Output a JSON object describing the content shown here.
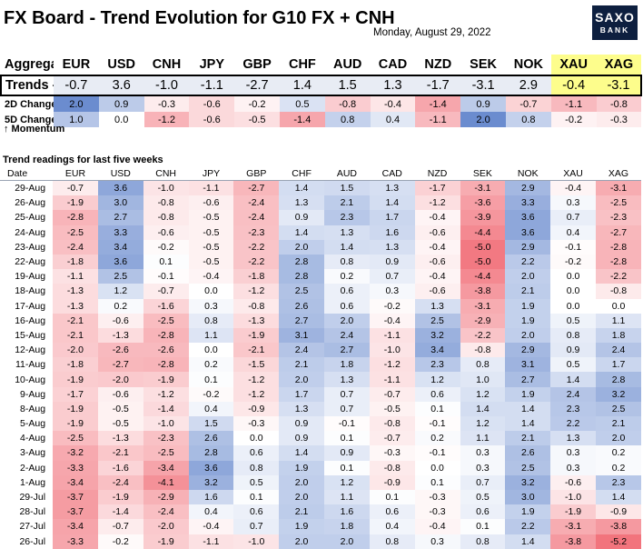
{
  "title": "FX Board - Trend Evolution for G10 FX + CNH",
  "date": "Monday, August 29, 2022",
  "logo": {
    "line1": "SAXO",
    "line2": "BANK"
  },
  "currencies": [
    "EUR",
    "USD",
    "CNH",
    "JPY",
    "GBP",
    "CHF",
    "AUD",
    "CAD",
    "NZD",
    "SEK",
    "NOK",
    "XAU",
    "XAG"
  ],
  "summary": {
    "header_label": "Aggregate",
    "trends_label": "Trends ->",
    "trends": [
      "-0.7",
      "3.6",
      "-1.0",
      "-1.1",
      "-2.7",
      "1.4",
      "1.5",
      "1.3",
      "-1.7",
      "-3.1",
      "2.9",
      "-0.4",
      "-3.1"
    ],
    "change_2d_label": "2D Change",
    "change_2d": [
      "2.0",
      "0.9",
      "-0.3",
      "-0.6",
      "-0.2",
      "0.5",
      "-0.8",
      "-0.4",
      "-1.4",
      "0.9",
      "-0.7",
      "-1.1",
      "-0.8"
    ],
    "change_5d_label": "5D Change",
    "change_5d": [
      "1.0",
      "0.0",
      "-1.2",
      "-0.6",
      "-0.5",
      "-1.4",
      "0.8",
      "0.4",
      "-1.1",
      "2.0",
      "0.8",
      "-0.2",
      "-0.3"
    ]
  },
  "momentum_label": "↑ Momentum",
  "section_title": "Trend readings for last five weeks",
  "date_header": "Date",
  "colors": {
    "positive": "#4a72c4",
    "negative": "#f0646e",
    "highlight": "#fdfd8c",
    "logo_bg": "#0d1f3f"
  },
  "rows": [
    {
      "date": "29-Aug",
      "v": [
        "-0.7",
        "3.6",
        "-1.0",
        "-1.1",
        "-2.7",
        "1.4",
        "1.5",
        "1.3",
        "-1.7",
        "-3.1",
        "2.9",
        "-0.4",
        "-3.1"
      ]
    },
    {
      "date": "26-Aug",
      "v": [
        "-1.9",
        "3.0",
        "-0.8",
        "-0.6",
        "-2.4",
        "1.3",
        "2.1",
        "1.4",
        "-1.2",
        "-3.6",
        "3.3",
        "0.3",
        "-2.5"
      ]
    },
    {
      "date": "25-Aug",
      "v": [
        "-2.8",
        "2.7",
        "-0.8",
        "-0.5",
        "-2.4",
        "0.9",
        "2.3",
        "1.7",
        "-0.4",
        "-3.9",
        "3.6",
        "0.7",
        "-2.3"
      ]
    },
    {
      "date": "24-Aug",
      "v": [
        "-2.5",
        "3.3",
        "-0.6",
        "-0.5",
        "-2.3",
        "1.4",
        "1.3",
        "1.6",
        "-0.6",
        "-4.4",
        "3.6",
        "0.4",
        "-2.7"
      ]
    },
    {
      "date": "23-Aug",
      "v": [
        "-2.4",
        "3.4",
        "-0.2",
        "-0.5",
        "-2.2",
        "2.0",
        "1.4",
        "1.3",
        "-0.4",
        "-5.0",
        "2.9",
        "-0.1",
        "-2.8"
      ]
    },
    {
      "date": "22-Aug",
      "v": [
        "-1.8",
        "3.6",
        "0.1",
        "-0.5",
        "-2.2",
        "2.8",
        "0.8",
        "0.9",
        "-0.6",
        "-5.0",
        "2.2",
        "-0.2",
        "-2.8"
      ]
    },
    {
      "date": "19-Aug",
      "v": [
        "-1.1",
        "2.5",
        "-0.1",
        "-0.4",
        "-1.8",
        "2.8",
        "0.2",
        "0.7",
        "-0.4",
        "-4.4",
        "2.0",
        "0.0",
        "-2.2"
      ]
    },
    {
      "date": "18-Aug",
      "v": [
        "-1.3",
        "1.2",
        "-0.7",
        "0.0",
        "-1.2",
        "2.5",
        "0.6",
        "0.3",
        "-0.6",
        "-3.8",
        "2.1",
        "0.0",
        "-0.8"
      ]
    },
    {
      "date": "17-Aug",
      "v": [
        "-1.3",
        "0.2",
        "-1.6",
        "0.3",
        "-0.8",
        "2.6",
        "0.6",
        "-0.2",
        "1.3",
        "-3.1",
        "1.9",
        "0.0",
        "0.0"
      ]
    },
    {
      "date": "16-Aug",
      "v": [
        "-2.1",
        "-0.6",
        "-2.5",
        "0.8",
        "-1.3",
        "2.7",
        "2.0",
        "-0.4",
        "2.5",
        "-2.9",
        "1.9",
        "0.5",
        "1.1"
      ]
    },
    {
      "date": "15-Aug",
      "v": [
        "-2.1",
        "-1.3",
        "-2.8",
        "1.1",
        "-1.9",
        "3.1",
        "2.4",
        "-1.1",
        "3.2",
        "-2.2",
        "2.0",
        "0.8",
        "1.8"
      ]
    },
    {
      "date": "12-Aug",
      "v": [
        "-2.0",
        "-2.6",
        "-2.6",
        "0.0",
        "-2.1",
        "2.4",
        "2.7",
        "-1.0",
        "3.4",
        "-0.8",
        "2.9",
        "0.9",
        "2.4"
      ]
    },
    {
      "date": "11-Aug",
      "v": [
        "-1.8",
        "-2.7",
        "-2.8",
        "0.2",
        "-1.5",
        "2.1",
        "1.8",
        "-1.2",
        "2.3",
        "0.8",
        "3.1",
        "0.5",
        "1.7"
      ]
    },
    {
      "date": "10-Aug",
      "v": [
        "-1.9",
        "-2.0",
        "-1.9",
        "0.1",
        "-1.2",
        "2.0",
        "1.3",
        "-1.1",
        "1.2",
        "1.0",
        "2.7",
        "1.4",
        "2.8"
      ]
    },
    {
      "date": "9-Aug",
      "v": [
        "-1.7",
        "-0.6",
        "-1.2",
        "-0.2",
        "-1.2",
        "1.7",
        "0.7",
        "-0.7",
        "0.6",
        "1.2",
        "1.9",
        "2.4",
        "3.2"
      ]
    },
    {
      "date": "8-Aug",
      "v": [
        "-1.9",
        "-0.5",
        "-1.4",
        "0.4",
        "-0.9",
        "1.3",
        "0.7",
        "-0.5",
        "0.1",
        "1.4",
        "1.4",
        "2.3",
        "2.5"
      ]
    },
    {
      "date": "5-Aug",
      "v": [
        "-1.9",
        "-0.5",
        "-1.0",
        "1.5",
        "-0.3",
        "0.9",
        "-0.1",
        "-0.8",
        "-0.1",
        "1.2",
        "1.4",
        "2.2",
        "2.1"
      ]
    },
    {
      "date": "4-Aug",
      "v": [
        "-2.5",
        "-1.3",
        "-2.3",
        "2.6",
        "0.0",
        "0.9",
        "0.1",
        "-0.7",
        "0.2",
        "1.1",
        "2.1",
        "1.3",
        "2.0"
      ]
    },
    {
      "date": "3-Aug",
      "v": [
        "-3.2",
        "-2.1",
        "-2.5",
        "2.8",
        "0.6",
        "1.4",
        "0.9",
        "-0.3",
        "-0.1",
        "0.3",
        "2.6",
        "0.3",
        "0.2"
      ]
    },
    {
      "date": "2-Aug",
      "v": [
        "-3.3",
        "-1.6",
        "-3.4",
        "3.6",
        "0.8",
        "1.9",
        "0.1",
        "-0.8",
        "0.0",
        "0.3",
        "2.5",
        "0.3",
        "0.2"
      ]
    },
    {
      "date": "1-Aug",
      "v": [
        "-3.4",
        "-2.4",
        "-4.1",
        "3.2",
        "0.5",
        "2.0",
        "1.2",
        "-0.9",
        "0.1",
        "0.7",
        "3.2",
        "-0.6",
        "2.3"
      ]
    },
    {
      "date": "29-Jul",
      "v": [
        "-3.7",
        "-1.9",
        "-2.9",
        "1.6",
        "0.1",
        "2.0",
        "1.1",
        "0.1",
        "-0.3",
        "0.5",
        "3.0",
        "-1.0",
        "1.4"
      ]
    },
    {
      "date": "28-Jul",
      "v": [
        "-3.7",
        "-1.4",
        "-2.4",
        "0.4",
        "0.6",
        "2.1",
        "1.6",
        "0.6",
        "-0.3",
        "0.6",
        "1.9",
        "-1.9",
        "-0.9"
      ]
    },
    {
      "date": "27-Jul",
      "v": [
        "-3.4",
        "-0.7",
        "-2.0",
        "-0.4",
        "0.7",
        "1.9",
        "1.8",
        "0.4",
        "-0.4",
        "0.1",
        "2.2",
        "-3.1",
        "-3.8"
      ]
    },
    {
      "date": "26-Jul",
      "v": [
        "-3.3",
        "-0.2",
        "-1.9",
        "-1.1",
        "-1.0",
        "2.0",
        "2.0",
        "0.8",
        "0.3",
        "0.8",
        "1.4",
        "-3.8",
        "-5.2"
      ]
    }
  ]
}
